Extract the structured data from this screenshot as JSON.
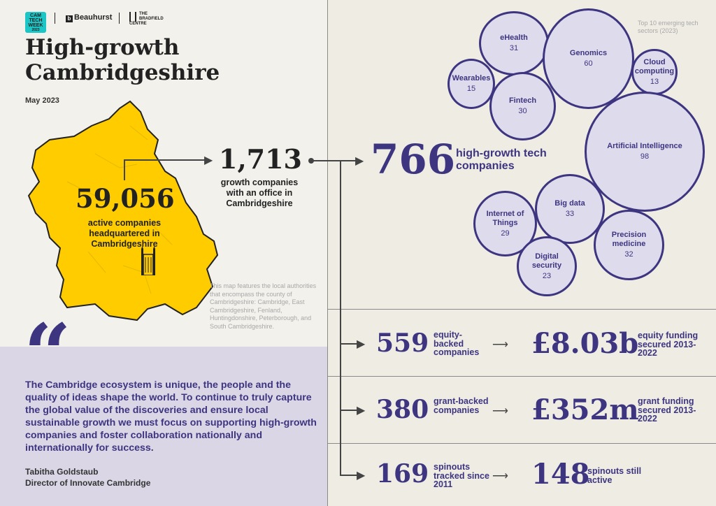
{
  "brand": {
    "logo1": "CAM TECH WEEK",
    "logo1_year": "2023",
    "logo2": "Beauhurst",
    "logo3": "THE BRADFIELD CENTRE"
  },
  "title": "High-growth Cambridgeshire",
  "date": "May 2023",
  "map": {
    "active_companies": "59,056",
    "active_caption": "active companies headquartered in Cambridgeshire",
    "note": "This map features the local authorities that encompass the county of Cambridgeshire: Cambridge, East Cambridgeshire, Fenland, Huntingdonshire, Peterborough, and South Cambridgeshire."
  },
  "growth": {
    "value": "1,713",
    "caption": "growth companies with an office in Cambridgeshire"
  },
  "tech": {
    "value": "766",
    "caption": "high-growth tech companies"
  },
  "sectors": {
    "title": "Top 10 emerging tech sectors (2023)",
    "items": [
      {
        "name": "eHealth",
        "value": "31"
      },
      {
        "name": "Genomics",
        "value": "60"
      },
      {
        "name": "Cloud computing",
        "value": "13"
      },
      {
        "name": "Wearables",
        "value": "15"
      },
      {
        "name": "Fintech",
        "value": "30"
      },
      {
        "name": "Artificial Intelligence",
        "value": "98"
      },
      {
        "name": "Big data",
        "value": "33"
      },
      {
        "name": "Internet of Things",
        "value": "29"
      },
      {
        "name": "Precision medicine",
        "value": "32"
      },
      {
        "name": "Digital security",
        "value": "23"
      }
    ]
  },
  "stats": [
    {
      "left_value": "559",
      "left_caption": "equity-backed companies",
      "right_value": "£8.03b",
      "right_caption": "equity funding secured 2013-2022"
    },
    {
      "left_value": "380",
      "left_caption": "grant-backed companies",
      "right_value": "£352m",
      "right_caption": "grant funding secured 2013-2022"
    },
    {
      "left_value": "169",
      "left_caption": "spinouts tracked since 2011",
      "right_value": "148",
      "right_caption": "spinouts still active"
    }
  ],
  "quote": {
    "mark": "“",
    "text": "The Cambridge ecosystem is unique, the people and the quality of ideas shape the world. To continue to truly capture the global value of the discoveries and ensure local sustainable growth we must focus on supporting high-growth companies and foster collaboration nationally and internationally for success.",
    "author": "Tabitha Goldstaub",
    "role": "Director of Innovate Cambridge"
  },
  "colors": {
    "purple": "#3d3580",
    "map_yellow": "#ffcc00",
    "bubble_fill": "#dedcec",
    "quote_bg": "#dad6e6",
    "teal_logo": "#1cc5c6"
  },
  "icons": [
    "kings-college-chapel-icon",
    "arrow-right-icon"
  ]
}
